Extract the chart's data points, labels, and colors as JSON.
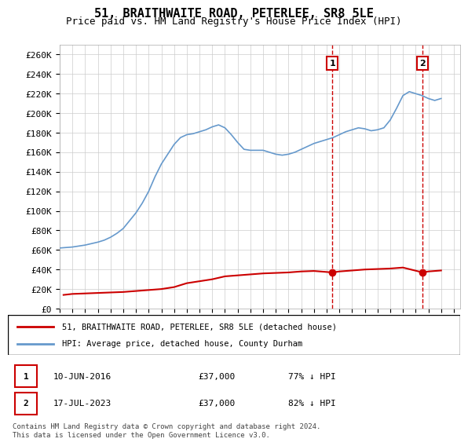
{
  "title": "51, BRAITHWAITE ROAD, PETERLEE, SR8 5LE",
  "subtitle": "Price paid vs. HM Land Registry's House Price Index (HPI)",
  "title_fontsize": 11,
  "subtitle_fontsize": 9,
  "ylabel_ticks": [
    "£0",
    "£20K",
    "£40K",
    "£60K",
    "£80K",
    "£100K",
    "£120K",
    "£140K",
    "£160K",
    "£180K",
    "£200K",
    "£220K",
    "£240K",
    "£260K"
  ],
  "ytick_values": [
    0,
    20000,
    40000,
    60000,
    80000,
    100000,
    120000,
    140000,
    160000,
    180000,
    200000,
    220000,
    240000,
    260000
  ],
  "ylim": [
    0,
    270000
  ],
  "xlim_start": 1995.0,
  "xlim_end": 2026.5,
  "hpi_color": "#6699cc",
  "price_color": "#cc0000",
  "vline_color": "#cc0000",
  "legend_label_red": "51, BRAITHWAITE ROAD, PETERLEE, SR8 5LE (detached house)",
  "legend_label_blue": "HPI: Average price, detached house, County Durham",
  "transaction1_date": "10-JUN-2016",
  "transaction1_price": "£37,000",
  "transaction1_hpi": "77% ↓ HPI",
  "transaction2_date": "17-JUL-2023",
  "transaction2_price": "£37,000",
  "transaction2_hpi": "82% ↓ HPI",
  "footer": "Contains HM Land Registry data © Crown copyright and database right 2024.\nThis data is licensed under the Open Government Licence v3.0.",
  "hpi_years": [
    1995,
    1995.5,
    1996,
    1996.5,
    1997,
    1997.5,
    1998,
    1998.5,
    1999,
    1999.5,
    2000,
    2000.5,
    2001,
    2001.5,
    2002,
    2002.5,
    2003,
    2003.5,
    2004,
    2004.5,
    2005,
    2005.5,
    2006,
    2006.5,
    2007,
    2007.5,
    2008,
    2008.5,
    2009,
    2009.5,
    2010,
    2010.5,
    2011,
    2011.5,
    2012,
    2012.5,
    2013,
    2013.5,
    2014,
    2014.5,
    2015,
    2015.5,
    2016,
    2016.5,
    2017,
    2017.5,
    2018,
    2018.5,
    2019,
    2019.5,
    2020,
    2020.5,
    2021,
    2021.5,
    2022,
    2022.5,
    2023,
    2023.5,
    2024,
    2024.5,
    2025
  ],
  "hpi_values": [
    62000,
    62500,
    63000,
    64000,
    65000,
    66500,
    68000,
    70000,
    73000,
    77000,
    82000,
    90000,
    98000,
    108000,
    120000,
    135000,
    148000,
    158000,
    168000,
    175000,
    178000,
    179000,
    181000,
    183000,
    186000,
    188000,
    185000,
    178000,
    170000,
    163000,
    162000,
    162000,
    162000,
    160000,
    158000,
    157000,
    158000,
    160000,
    163000,
    166000,
    169000,
    171000,
    173000,
    175000,
    178000,
    181000,
    183000,
    185000,
    184000,
    182000,
    183000,
    185000,
    193000,
    205000,
    218000,
    222000,
    220000,
    218000,
    215000,
    213000,
    215000
  ],
  "price_years": [
    1995.3,
    1996.0,
    1997.0,
    1998.0,
    1999.0,
    2000.0,
    2001.0,
    2002.0,
    2003.0,
    2004.0,
    2005.0,
    2006.0,
    2007.0,
    2008.0,
    2009.0,
    2010.0,
    2011.0,
    2012.0,
    2013.0,
    2014.0,
    2015.0,
    2016.45,
    2017.0,
    2018.0,
    2019.0,
    2020.0,
    2021.0,
    2022.0,
    2023.55,
    2024.0,
    2025.0
  ],
  "price_values": [
    14000,
    15000,
    15500,
    16000,
    16500,
    17000,
    18000,
    19000,
    20000,
    22000,
    26000,
    28000,
    30000,
    33000,
    34000,
    35000,
    36000,
    36500,
    37000,
    38000,
    38500,
    37000,
    38000,
    39000,
    40000,
    40500,
    41000,
    42000,
    37000,
    38000,
    39000
  ],
  "vline1_x": 2016.45,
  "vline2_x": 2023.55,
  "marker1_x": 2016.45,
  "marker1_y": 37000,
  "marker2_x": 2023.55,
  "marker2_y": 37000
}
